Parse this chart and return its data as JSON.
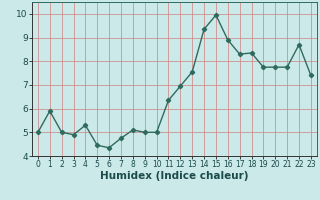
{
  "x": [
    0,
    1,
    2,
    3,
    4,
    5,
    6,
    7,
    8,
    9,
    10,
    11,
    12,
    13,
    14,
    15,
    16,
    17,
    18,
    19,
    20,
    21,
    22,
    23
  ],
  "y": [
    5.0,
    5.9,
    5.0,
    4.9,
    5.3,
    4.45,
    4.35,
    4.75,
    5.1,
    5.0,
    5.0,
    6.35,
    6.95,
    7.55,
    9.35,
    9.95,
    8.9,
    8.3,
    8.35,
    7.75,
    7.75,
    7.75,
    8.7,
    7.4
  ],
  "line_color": "#2e6b5e",
  "marker": "D",
  "marker_size": 2.2,
  "background_color": "#cce9e9",
  "grid_color": "#d08080",
  "xlabel": "Humidex (Indice chaleur)",
  "ylim": [
    4.0,
    10.5
  ],
  "xlim": [
    -0.5,
    23.5
  ],
  "yticks": [
    4,
    5,
    6,
    7,
    8,
    9,
    10
  ],
  "xticks": [
    0,
    1,
    2,
    3,
    4,
    5,
    6,
    7,
    8,
    9,
    10,
    11,
    12,
    13,
    14,
    15,
    16,
    17,
    18,
    19,
    20,
    21,
    22,
    23
  ],
  "tick_fontsize": 6.5,
  "xlabel_fontsize": 7.5,
  "line_width": 1.0
}
